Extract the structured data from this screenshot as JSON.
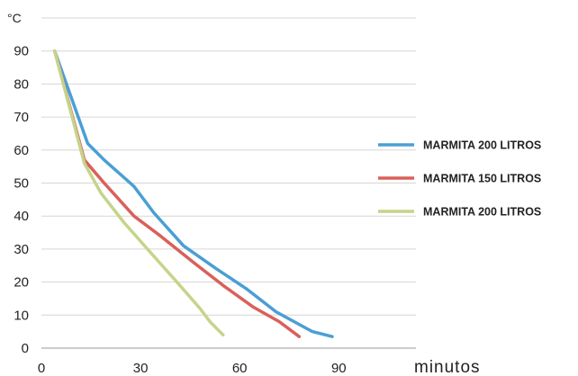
{
  "chart_data": {
    "type": "line",
    "ylabel": "°C",
    "xlabel": "minutos",
    "xlim": [
      0,
      100
    ],
    "ylim": [
      0,
      100
    ],
    "x_ticks": [
      "0",
      "30",
      "60",
      "90"
    ],
    "x_tick_values": [
      0,
      30,
      60,
      90
    ],
    "y_ticks": [
      "0",
      "10",
      "20",
      "30",
      "40",
      "50",
      "60",
      "70",
      "80",
      "90"
    ],
    "y_tick_values": [
      0,
      10,
      20,
      30,
      40,
      50,
      60,
      70,
      80,
      90
    ],
    "grid": "horizontal",
    "legend_position": "right",
    "series": [
      {
        "name": "MARMITA 200 LITROS",
        "color": "#4a9fd4",
        "points": [
          [
            4,
            90
          ],
          [
            14,
            62
          ],
          [
            19,
            57
          ],
          [
            28,
            49
          ],
          [
            34,
            41
          ],
          [
            43,
            31
          ],
          [
            53,
            24
          ],
          [
            62,
            18
          ],
          [
            71,
            11
          ],
          [
            82,
            5
          ],
          [
            88,
            3.5
          ]
        ]
      },
      {
        "name": "MARMITA 150 LITROS",
        "color": "#d9605a",
        "points": [
          [
            4,
            90
          ],
          [
            13,
            57
          ],
          [
            19,
            50
          ],
          [
            28,
            40
          ],
          [
            36,
            34
          ],
          [
            46,
            26
          ],
          [
            55,
            19
          ],
          [
            64,
            12.5
          ],
          [
            72,
            8
          ],
          [
            78,
            3.5
          ]
        ]
      },
      {
        "name": "MARMITA 200 LITROS",
        "color": "#c5d48a",
        "points": [
          [
            4,
            90
          ],
          [
            13,
            56
          ],
          [
            18,
            47
          ],
          [
            25,
            38
          ],
          [
            33,
            29
          ],
          [
            41,
            20
          ],
          [
            48,
            12
          ],
          [
            51,
            8
          ],
          [
            55,
            4
          ]
        ]
      }
    ]
  }
}
